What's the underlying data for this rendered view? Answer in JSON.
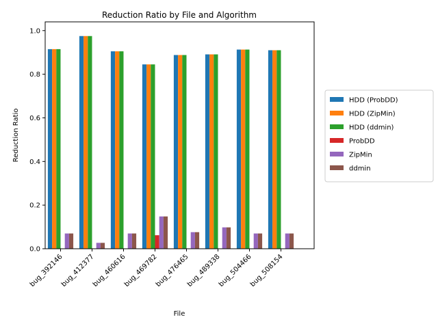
{
  "chart_data": {
    "type": "bar",
    "title": "Reduction Ratio by File and Algorithm",
    "xlabel": "File",
    "ylabel": "Reduction Ratio",
    "ylim": [
      0,
      1.04
    ],
    "yticks": [
      0.0,
      0.2,
      0.4,
      0.6,
      0.8,
      1.0
    ],
    "ytick_labels": [
      "0.0",
      "0.2",
      "0.4",
      "0.6",
      "0.8",
      "1.0"
    ],
    "grid": false,
    "legend_position": "right, outside plot",
    "categories": [
      "bug_392146",
      "bug_412377",
      "bug_460616",
      "bug_469782",
      "bug_476465",
      "bug_489338",
      "bug_504466",
      "bug_508154"
    ],
    "series": [
      {
        "name": "HDD (ProbDD)",
        "color": "#1f77b4",
        "values": [
          0.915,
          0.975,
          0.905,
          0.845,
          0.888,
          0.891,
          0.913,
          0.91
        ]
      },
      {
        "name": "HDD (ZipMin)",
        "color": "#ff7f0e",
        "values": [
          0.915,
          0.975,
          0.905,
          0.845,
          0.888,
          0.891,
          0.913,
          0.91
        ]
      },
      {
        "name": "HDD (ddmin)",
        "color": "#2ca02c",
        "values": [
          0.915,
          0.975,
          0.905,
          0.845,
          0.888,
          0.891,
          0.913,
          0.91
        ]
      },
      {
        "name": "ProbDD",
        "color": "#d62728",
        "values": [
          0.0,
          0.0,
          0.0,
          0.062,
          0.0,
          0.0,
          0.0,
          0.0
        ]
      },
      {
        "name": "ZipMin",
        "color": "#9467bd",
        "values": [
          0.07,
          0.027,
          0.07,
          0.148,
          0.076,
          0.098,
          0.07,
          0.07
        ]
      },
      {
        "name": "ddmin",
        "color": "#8c564b",
        "values": [
          0.07,
          0.027,
          0.07,
          0.148,
          0.076,
          0.098,
          0.07,
          0.07
        ]
      }
    ]
  }
}
